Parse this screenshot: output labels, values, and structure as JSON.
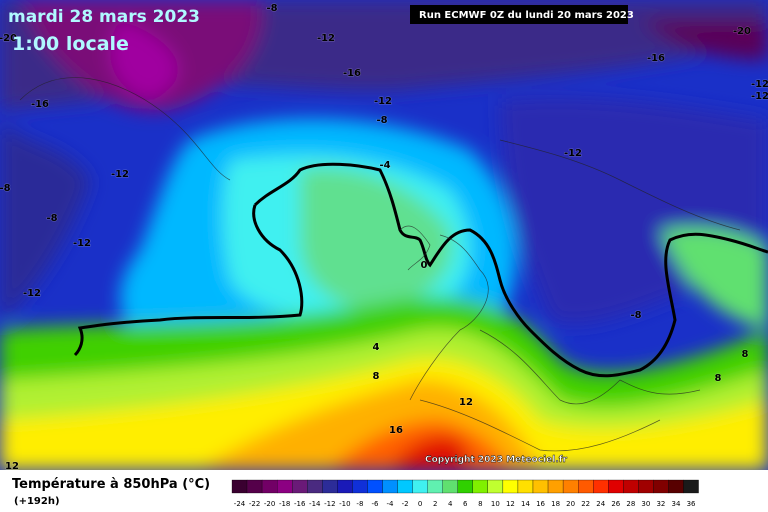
{
  "header": {
    "date": "mardi 28 mars 2023",
    "time": "1:00 locale",
    "run": "Run ECMWF 0Z du lundi 20 mars 2023"
  },
  "map": {
    "contour_labels": [
      "-8",
      "-20",
      "-12",
      "-16",
      "-16",
      "-12",
      "-8",
      "-12",
      "-8",
      "-8",
      "-12",
      "-12",
      "-4",
      "0",
      "4",
      "8",
      "12",
      "16",
      "12",
      "-20",
      "-16",
      "-12",
      "-12",
      "-12",
      "-8",
      "8",
      "8"
    ],
    "copyright": "Copyright 2023 Meteociel.fr"
  },
  "footer": {
    "title": "Température à 850hPa (°C)",
    "lead": "(+192h)",
    "legend": [
      {
        "label": "-24",
        "color": "#3a0030"
      },
      {
        "label": "-22",
        "color": "#55004a"
      },
      {
        "label": "-20",
        "color": "#720066"
      },
      {
        "label": "-18",
        "color": "#8c0082"
      },
      {
        "label": "-16",
        "color": "#6a1a78"
      },
      {
        "label": "-14",
        "color": "#4a2a80"
      },
      {
        "label": "-12",
        "color": "#2c2c98"
      },
      {
        "label": "-10",
        "color": "#1a1ab8"
      },
      {
        "label": "-8",
        "color": "#1030d8"
      },
      {
        "label": "-6",
        "color": "#0050ff"
      },
      {
        "label": "-4",
        "color": "#0090ff"
      },
      {
        "label": "-2",
        "color": "#00c8ff"
      },
      {
        "label": "0",
        "color": "#40f0f0"
      },
      {
        "label": "2",
        "color": "#60f0b0"
      },
      {
        "label": "4",
        "color": "#60e070"
      },
      {
        "label": "6",
        "color": "#30d000"
      },
      {
        "label": "8",
        "color": "#80f000"
      },
      {
        "label": "10",
        "color": "#c0ff30"
      },
      {
        "label": "12",
        "color": "#ffff00"
      },
      {
        "label": "14",
        "color": "#ffe000"
      },
      {
        "label": "16",
        "color": "#ffc000"
      },
      {
        "label": "18",
        "color": "#ffa000"
      },
      {
        "label": "20",
        "color": "#ff8000"
      },
      {
        "label": "22",
        "color": "#ff5a00"
      },
      {
        "label": "24",
        "color": "#ff3000"
      },
      {
        "label": "26",
        "color": "#e00000"
      },
      {
        "label": "28",
        "color": "#c00000"
      },
      {
        "label": "30",
        "color": "#a00000"
      },
      {
        "label": "32",
        "color": "#800000"
      },
      {
        "label": "34",
        "color": "#580000"
      },
      {
        "label": "36",
        "color": "#1a1a1a"
      }
    ]
  }
}
